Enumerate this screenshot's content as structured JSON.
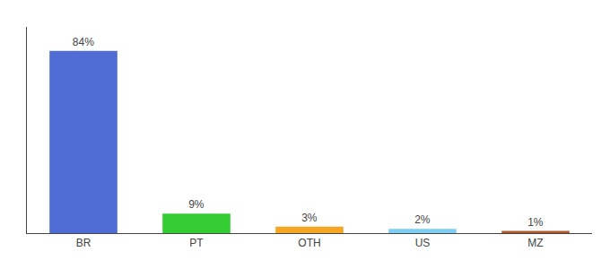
{
  "chart_data": {
    "type": "bar",
    "categories": [
      "BR",
      "PT",
      "OTH",
      "US",
      "MZ"
    ],
    "values": [
      84,
      9,
      3,
      2,
      1
    ],
    "value_labels": [
      "84%",
      "9%",
      "3%",
      "2%",
      "1%"
    ],
    "colors": [
      "#4f6cd4",
      "#33cc33",
      "#f5a623",
      "#7ecef4",
      "#b05a2a"
    ],
    "ylim": [
      0,
      95
    ],
    "data_labels": true,
    "tick_labels": "x",
    "grid": false
  }
}
